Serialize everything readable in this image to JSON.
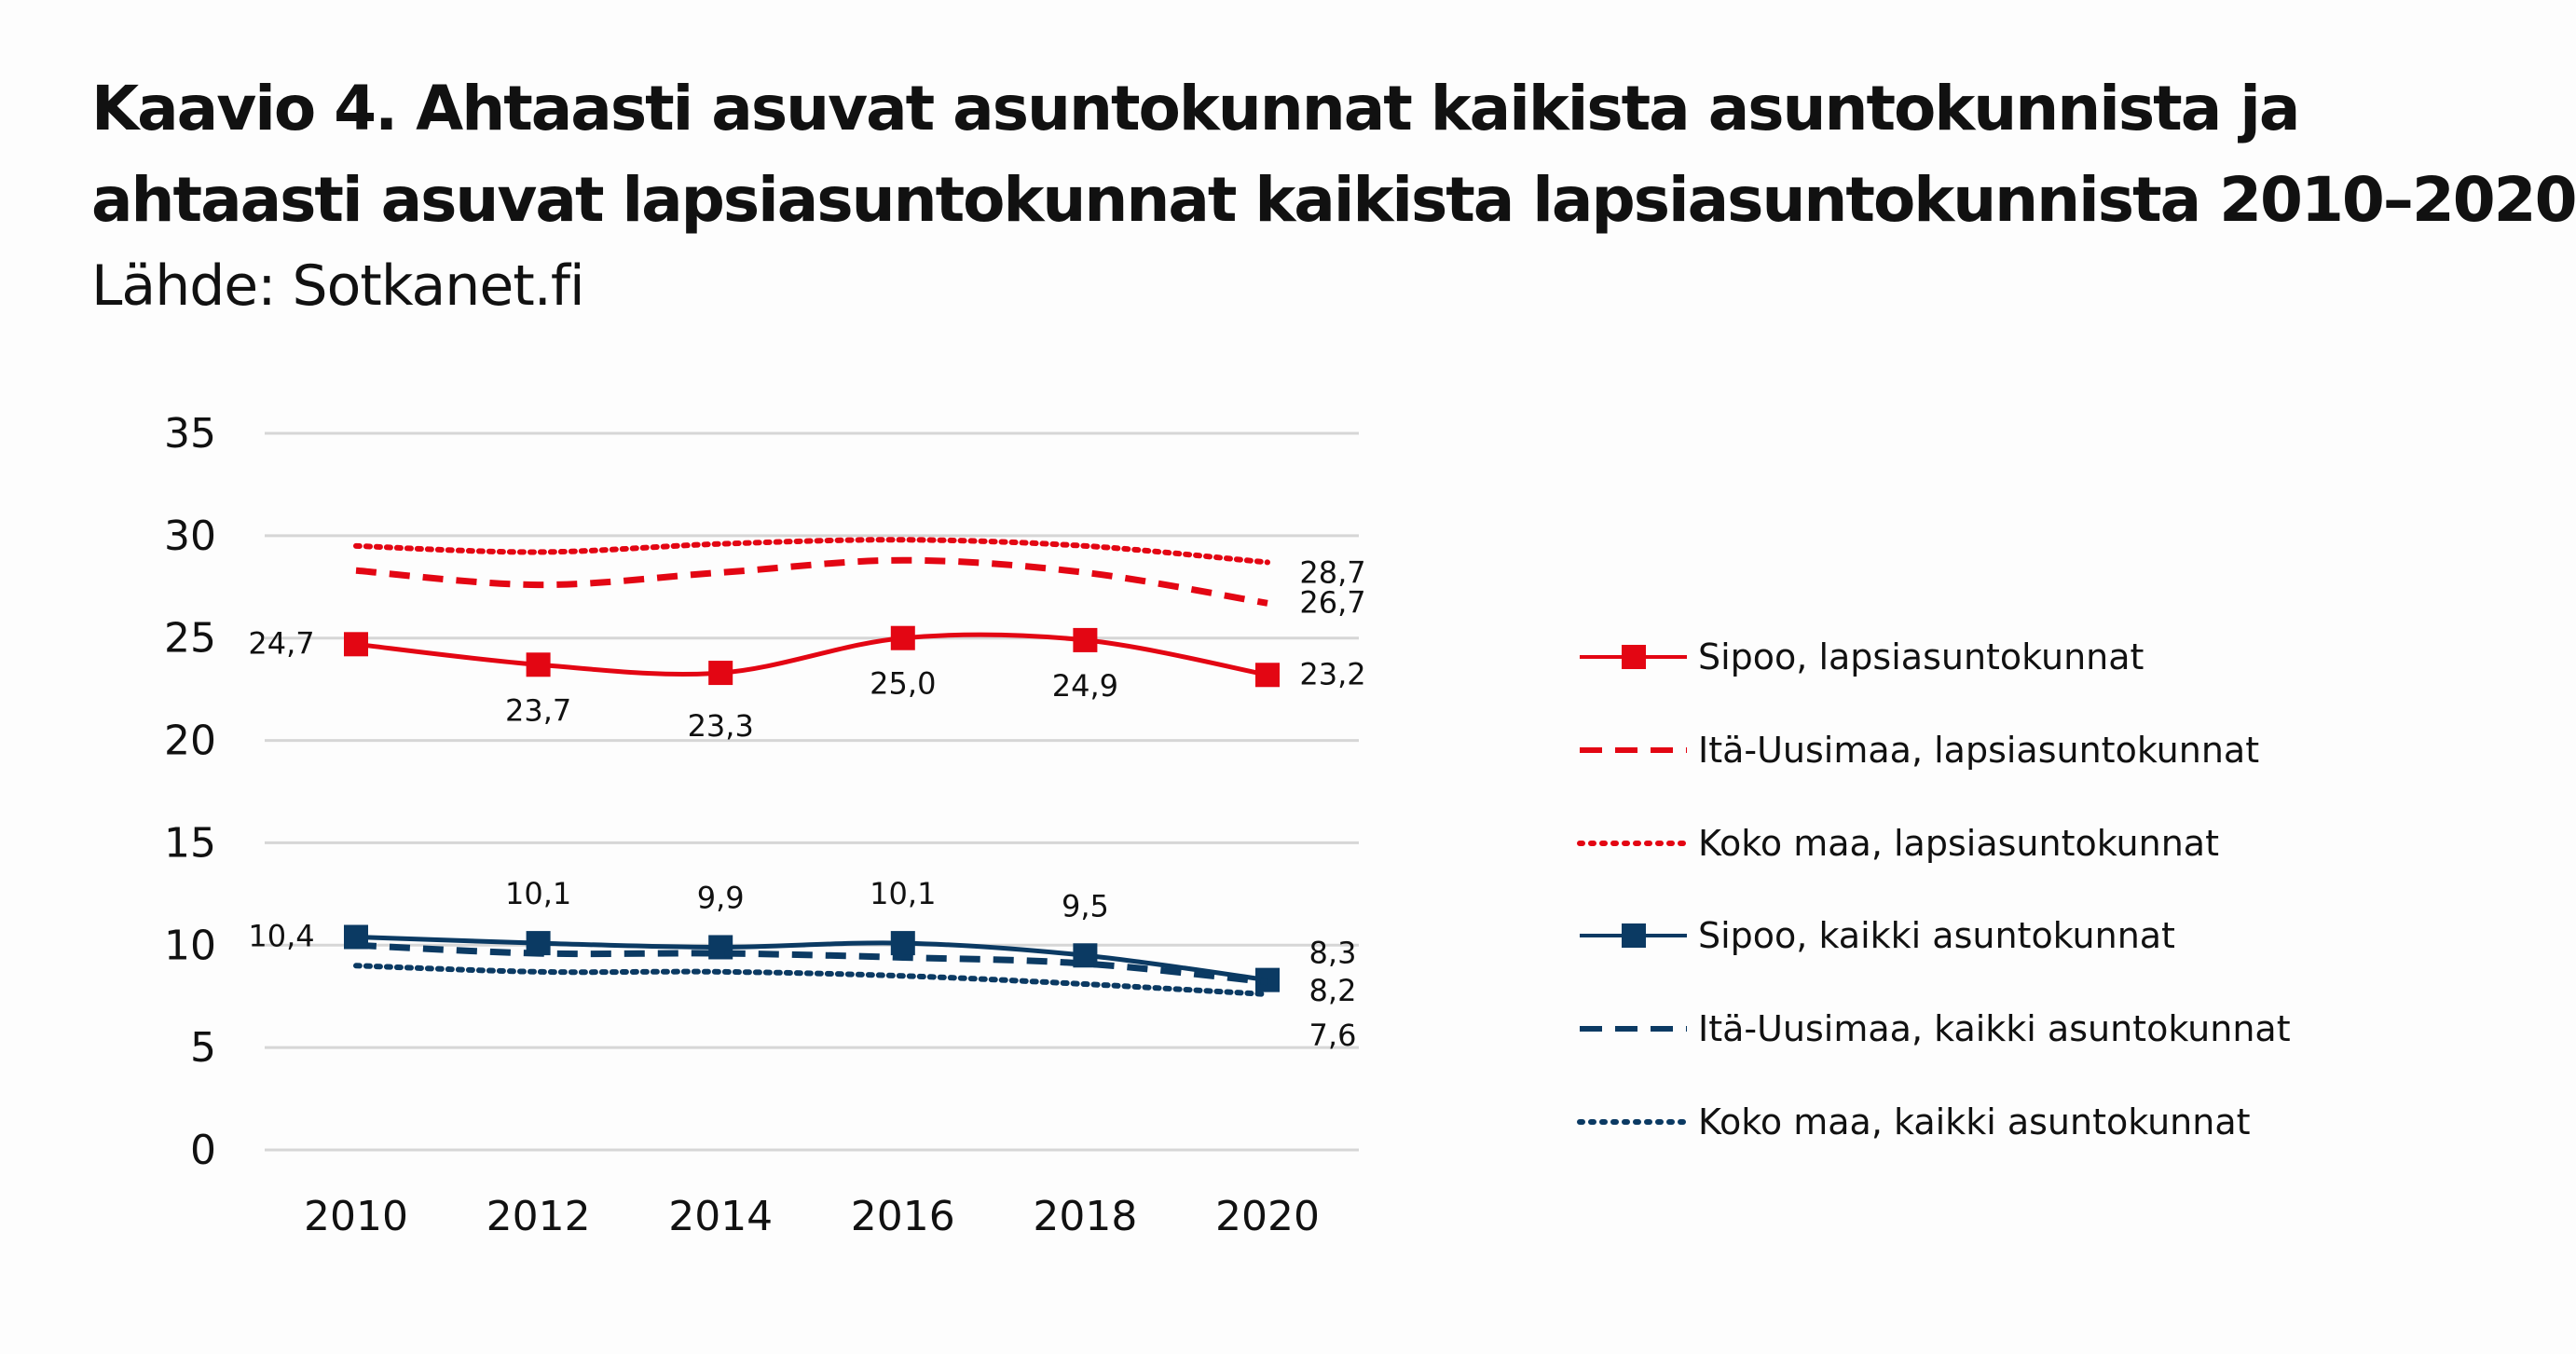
{
  "title_line1": "Kaavio 4. Ahtaasti asuvat asuntokunnat kaikista asuntokunnista ja",
  "title_line2": "ahtaasti asuvat lapsiasuntokunnat kaikista lapsiasuntokunnista 2010–2020",
  "source": "Lähde: Sotkanet.fi",
  "chart_data": {
    "type": "line",
    "title": "Kaavio 4. Ahtaasti asuvat asuntokunnat kaikista asuntokunnista ja ahtaasti asuvat lapsiasuntokunnat kaikista lapsiasuntokunnista 2010–2020",
    "x": [
      "2010",
      "2012",
      "2014",
      "2016",
      "2018",
      "2020"
    ],
    "ylim": [
      0,
      35
    ],
    "yticks": [
      "0",
      "5",
      "10",
      "15",
      "20",
      "25",
      "30",
      "35"
    ],
    "grid": true,
    "legend_position": "right",
    "series": [
      {
        "name": "Sipoo, lapsiasuntokunnat",
        "color": "#e30613",
        "style": "solid",
        "marker": true,
        "values": [
          24.7,
          23.7,
          23.3,
          25.0,
          24.9,
          23.2
        ],
        "labels": [
          "24,7",
          "23,7",
          "23,3",
          "25,0",
          "24,9",
          "23,2"
        ]
      },
      {
        "name": "Itä-Uusimaa, lapsiasuntokunnat",
        "color": "#e30613",
        "style": "dashed",
        "marker": false,
        "values": [
          28.3,
          27.6,
          28.2,
          28.8,
          28.2,
          26.7
        ],
        "labels": [
          "",
          "",
          "",
          "",
          "",
          "26,7"
        ]
      },
      {
        "name": "Koko maa, lapsiasuntokunnat",
        "color": "#e30613",
        "style": "dotted",
        "marker": false,
        "values": [
          29.5,
          29.2,
          29.6,
          29.8,
          29.5,
          28.7
        ],
        "labels": [
          "",
          "",
          "",
          "",
          "",
          "28,7"
        ]
      },
      {
        "name": "Sipoo, kaikki asuntokunnat",
        "color": "#0b3a63",
        "style": "solid",
        "marker": true,
        "values": [
          10.4,
          10.1,
          9.9,
          10.1,
          9.5,
          8.3
        ],
        "labels": [
          "10,4",
          "10,1",
          "9,9",
          "10,1",
          "9,5",
          "8,3"
        ]
      },
      {
        "name": "Itä-Uusimaa, kaikki asuntokunnat",
        "color": "#0b3a63",
        "style": "dashed",
        "marker": false,
        "values": [
          10.0,
          9.6,
          9.6,
          9.4,
          9.1,
          8.2
        ],
        "labels": [
          "",
          "",
          "",
          "",
          "",
          "8,2"
        ]
      },
      {
        "name": "Koko maa, kaikki asuntokunnat",
        "color": "#0b3a63",
        "style": "dotted",
        "marker": false,
        "values": [
          9.0,
          8.7,
          8.7,
          8.5,
          8.1,
          7.6
        ],
        "labels": [
          "",
          "",
          "",
          "",
          "",
          "7,6"
        ]
      }
    ]
  }
}
